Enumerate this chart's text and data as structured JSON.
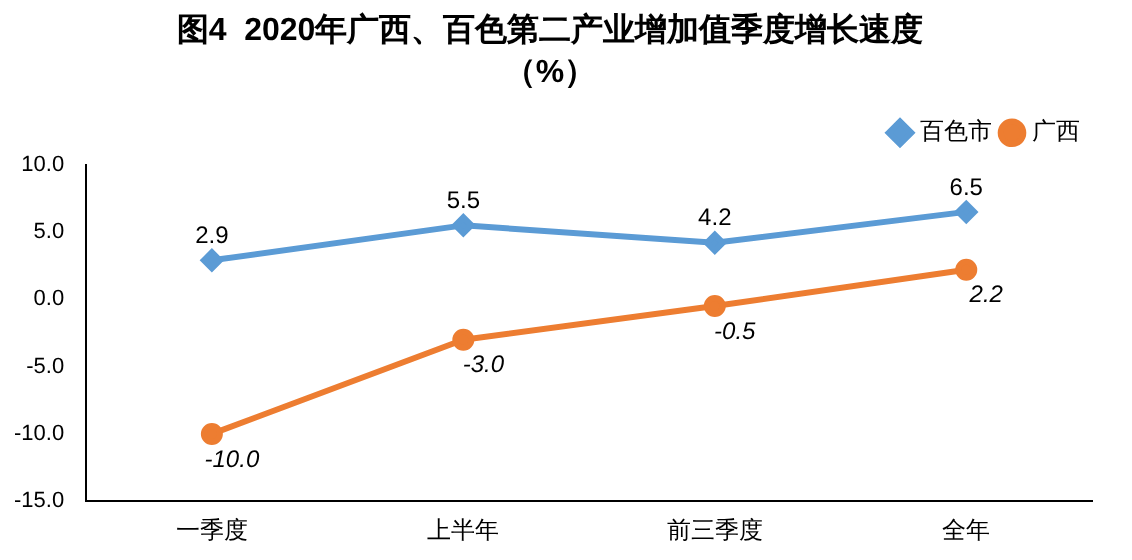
{
  "chart_data": {
    "type": "line",
    "title": "图4  2020年广西、百色第二产业增加值季度增长速度",
    "subtitle": "（%）",
    "categories": [
      "一季度",
      "上半年",
      "前三季度",
      "全年"
    ],
    "series": [
      {
        "name": "百色市",
        "color": "#5b9bd5",
        "marker": "diamond",
        "values": [
          2.9,
          5.5,
          4.2,
          6.5
        ],
        "value_labels": [
          "2.9",
          "5.5",
          "4.2",
          "6.5"
        ]
      },
      {
        "name": "广西",
        "color": "#ed7d31",
        "marker": "circle",
        "values": [
          -10.0,
          -3.0,
          -0.5,
          2.2
        ],
        "value_labels": [
          "-10.0",
          "-3.0",
          "-0.5",
          "2.2"
        ]
      }
    ],
    "ylim": [
      -15,
      10
    ],
    "yticks": [
      {
        "value": -15,
        "label": "-15.0"
      },
      {
        "value": -10,
        "label": "-10.0"
      },
      {
        "value": -5,
        "label": "-5.0"
      },
      {
        "value": 0,
        "label": "0.0"
      },
      {
        "value": 5,
        "label": "5.0"
      },
      {
        "value": 10,
        "label": "10.0"
      }
    ],
    "grid": false,
    "legend": "top right",
    "line_style": "solid"
  }
}
